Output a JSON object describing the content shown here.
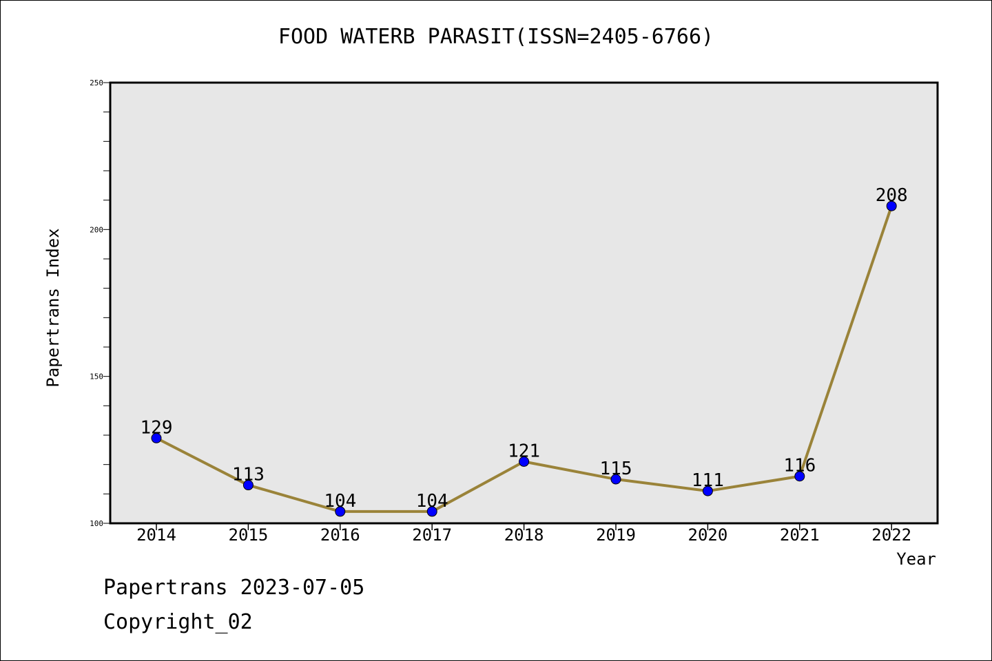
{
  "title": "FOOD WATERB PARASIT(ISSN=2405-6766)",
  "footer": {
    "line1": "Papertrans 2023-07-05",
    "line2": "Copyright_02"
  },
  "colors": {
    "plot_background": "#e7e7e7",
    "line": "#9a8339",
    "marker": "#0000ff"
  },
  "chart_data": {
    "type": "line",
    "title": "FOOD WATERB PARASIT(ISSN=2405-6766)",
    "xlabel": "Year",
    "ylabel": "Papertrans Index",
    "categories": [
      "2014",
      "2015",
      "2016",
      "2017",
      "2018",
      "2019",
      "2020",
      "2021",
      "2022"
    ],
    "values": [
      129,
      113,
      104,
      104,
      121,
      115,
      111,
      116,
      208
    ],
    "ylim": [
      100,
      250
    ],
    "yticks": [
      100,
      150,
      200,
      250
    ],
    "data_labels": true,
    "grid": false,
    "legend": "none"
  }
}
